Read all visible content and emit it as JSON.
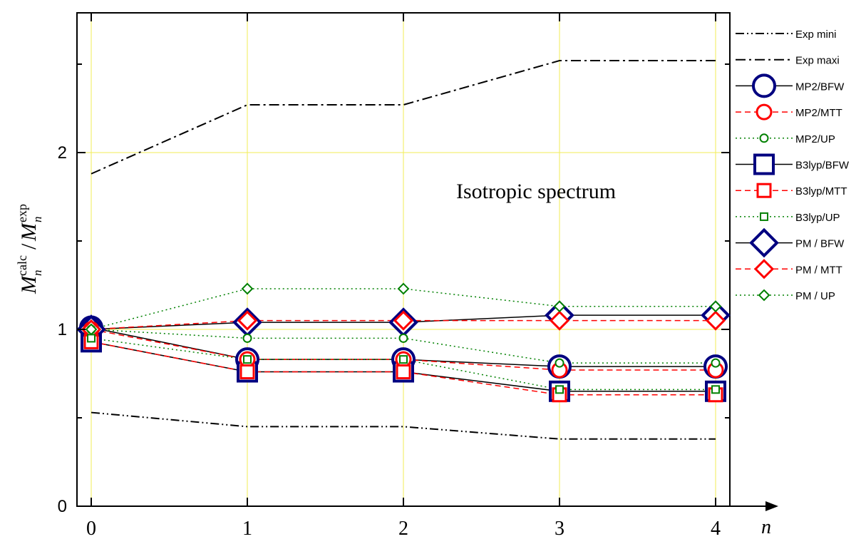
{
  "chart_data": {
    "type": "line",
    "x": [
      0,
      1,
      2,
      3,
      4
    ],
    "xlim": [
      -0.1,
      4.1
    ],
    "ylim": [
      0,
      2.8
    ],
    "x_ticks": [
      "0",
      "1",
      "2",
      "3",
      "4"
    ],
    "y_ticks": [
      "0",
      "1",
      "2"
    ],
    "xlabel": "n",
    "ylabel": {
      "base": "M",
      "sub": "n",
      "sup_num": "calc",
      "sup_den": "exp"
    },
    "annotation": "Isotropic spectrum",
    "grid": true,
    "grid_color": "#f2ee55",
    "legend_position": "right",
    "series": [
      {
        "name": "Exp mini",
        "values": [
          0.53,
          0.45,
          0.45,
          0.38,
          0.38
        ],
        "color": "#000000",
        "line": "dashdotdot",
        "marker": "none"
      },
      {
        "name": "Exp maxi",
        "values": [
          1.88,
          2.27,
          2.27,
          2.52,
          2.52
        ],
        "color": "#000000",
        "line": "dashdot",
        "marker": "none"
      },
      {
        "name": "MP2/BFW",
        "values": [
          1.01,
          0.83,
          0.83,
          0.79,
          0.79
        ],
        "color": "#000080",
        "line": "solid-black",
        "marker": "circle-large"
      },
      {
        "name": "MP2/MTT",
        "values": [
          1.0,
          0.83,
          0.83,
          0.77,
          0.77
        ],
        "color": "#ff0000",
        "line": "dashed",
        "marker": "circle-medium"
      },
      {
        "name": "MP2/UP",
        "values": [
          1.0,
          0.95,
          0.95,
          0.81,
          0.81
        ],
        "color": "#008000",
        "line": "dotted",
        "marker": "circle-small"
      },
      {
        "name": "B3lyp/BFW",
        "values": [
          0.93,
          0.76,
          0.76,
          0.65,
          0.65
        ],
        "color": "#000080",
        "line": "solid-black",
        "marker": "square-large"
      },
      {
        "name": "B3lyp/MTT",
        "values": [
          0.93,
          0.76,
          0.76,
          0.63,
          0.63
        ],
        "color": "#ff0000",
        "line": "dashed",
        "marker": "square-medium"
      },
      {
        "name": "B3lyp/UP",
        "values": [
          0.95,
          0.83,
          0.83,
          0.66,
          0.66
        ],
        "color": "#008000",
        "line": "dotted",
        "marker": "square-small"
      },
      {
        "name": "PM / BFW",
        "values": [
          1.0,
          1.04,
          1.04,
          1.08,
          1.08
        ],
        "color": "#000080",
        "line": "solid-black",
        "marker": "diamond-large"
      },
      {
        "name": "PM / MTT",
        "values": [
          1.0,
          1.05,
          1.05,
          1.05,
          1.05
        ],
        "color": "#ff0000",
        "line": "dashed",
        "marker": "diamond-medium"
      },
      {
        "name": "PM / UP",
        "values": [
          1.0,
          1.23,
          1.23,
          1.13,
          1.13
        ],
        "color": "#008000",
        "line": "dotted",
        "marker": "diamond-small"
      }
    ]
  }
}
